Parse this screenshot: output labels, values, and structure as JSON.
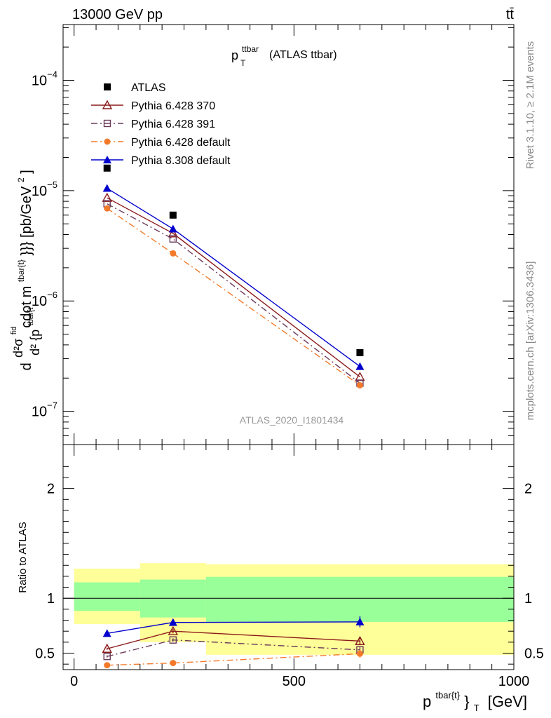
{
  "header": {
    "energy_label": "13000 GeV pp",
    "process_label": "tt̄"
  },
  "side_labels": {
    "rivet": "Rivet 3.1.10, ≥ 2.1M events",
    "source": "mcplots.cern.ch [arXiv:1306.3436]"
  },
  "chart_data": [
    {
      "type": "line",
      "title": "p_T^{ttbar} (ATLAS ttbar)",
      "title_main": "p",
      "title_sup": "ttbar",
      "title_sub": "T",
      "title_suffix": "(ATLAS ttbar)",
      "watermark": "ATLAS_2020_I1801434",
      "ylabel": "d d²σ^{fid} / d² {p_T^{tbar{t}}} cdot m^{tbar{t}}}} [pb/GeV²]",
      "ylabel_parts": {
        "d1": "d",
        "num": "d²σ",
        "num_sup": "fid",
        "den": "d² {p",
        "den_sup": "tbar{t",
        "den_sub": "T",
        "rest": "cdot m",
        "rest_sup": "tbar{t}",
        "tail": "}}} [pb/GeV",
        "tail_sup": "2",
        "end": "]"
      },
      "y_scale": "log",
      "ylim": [
        5e-08,
        0.00032
      ],
      "xlim": [
        -25,
        1000
      ],
      "y_ticks": [
        {
          "value": 1e-07,
          "base": "10",
          "exp": "−7"
        },
        {
          "value": 1e-06,
          "base": "10",
          "exp": "−6"
        },
        {
          "value": 1e-05,
          "base": "10",
          "exp": "−5"
        },
        {
          "value": 0.0001,
          "base": "10",
          "exp": "−4"
        }
      ],
      "legend_position": "top-left",
      "series": [
        {
          "name": "ATLAS",
          "color": "#000000",
          "marker": "square-filled",
          "line": "none",
          "x": [
            75,
            225,
            650
          ],
          "y": [
            1.6e-05,
            6e-06,
            3.4e-07
          ]
        },
        {
          "name": "Pythia 6.428 370",
          "color": "#8b1a1a",
          "marker": "triangle-open",
          "line": "solid",
          "x": [
            75,
            225,
            650
          ],
          "y": [
            8.6e-06,
            4.1e-06,
            2.05e-07
          ]
        },
        {
          "name": "Pythia 6.428 391",
          "color": "#6b3a5a",
          "marker": "square-open",
          "line": "dashdot",
          "x": [
            75,
            225,
            650
          ],
          "y": [
            7.6e-06,
            3.65e-06,
            1.8e-07
          ]
        },
        {
          "name": "Pythia 6.428 default",
          "color": "#f37a2a",
          "marker": "circle-filled",
          "line": "dashdot",
          "x": [
            75,
            225,
            650
          ],
          "y": [
            6.9e-06,
            2.7e-06,
            1.72e-07
          ]
        },
        {
          "name": "Pythia 8.308 default",
          "color": "#0000cc",
          "marker": "triangle-filled",
          "line": "solid",
          "x": [
            75,
            225,
            650
          ],
          "y": [
            1.05e-05,
            4.5e-06,
            2.55e-07
          ]
        }
      ]
    },
    {
      "type": "line",
      "ylabel": "Ratio to ATLAS",
      "xlabel": "p_T^{tbar{t}} [GeV]",
      "xlabel_parts": {
        "main": "p",
        "sup": "tbar{t}",
        "mid": "}",
        "sub": "T",
        "unit": "[GeV]"
      },
      "xlim": [
        -25,
        1000
      ],
      "ylim": [
        0.35,
        2.4
      ],
      "x_ticks": [
        0,
        500,
        1000
      ],
      "x_tick_labels": [
        "0",
        "500",
        "1000"
      ],
      "y_ticks": [
        0.5,
        1,
        2
      ],
      "y_tick_labels": [
        "0.5",
        "1",
        "2"
      ],
      "reference_line": 1,
      "uncertainty_bands": [
        {
          "x0": 0,
          "x1": 150,
          "stat": [
            0.885,
            1.145
          ],
          "total": [
            0.765,
            1.27
          ]
        },
        {
          "x0": 150,
          "x1": 300,
          "stat": [
            0.825,
            1.17
          ],
          "total": [
            0.6,
            1.32
          ]
        },
        {
          "x0": 300,
          "x1": 1000,
          "stat": [
            0.785,
            1.195
          ],
          "total": [
            0.485,
            1.31
          ]
        }
      ],
      "band_colors": {
        "stat": "#99ff99",
        "total": "#ffff99"
      },
      "series": [
        {
          "name": "Pythia 6.428 370",
          "color": "#8b1a1a",
          "marker": "triangle-open",
          "line": "solid",
          "x": [
            75,
            225,
            650
          ],
          "y": [
            0.54,
            0.7,
            0.61
          ],
          "err": [
            0.01,
            0.02,
            0.03
          ]
        },
        {
          "name": "Pythia 6.428 391",
          "color": "#6b3a5a",
          "marker": "square-open",
          "line": "dashdot",
          "x": [
            75,
            225,
            650
          ],
          "y": [
            0.47,
            0.62,
            0.53
          ],
          "err": [
            0.01,
            0.015,
            0.025
          ]
        },
        {
          "name": "Pythia 6.428 default",
          "color": "#f37a2a",
          "marker": "circle-filled",
          "line": "dashdot",
          "x": [
            75,
            225,
            650
          ],
          "y": [
            0.39,
            0.41,
            0.495
          ],
          "err": [
            0.015,
            0.02,
            0.035
          ]
        },
        {
          "name": "Pythia 8.308 default",
          "color": "#0000cc",
          "marker": "triangle-filled",
          "line": "solid",
          "x": [
            75,
            225,
            650
          ],
          "y": [
            0.68,
            0.78,
            0.785
          ],
          "err": [
            0.015,
            0.03,
            0.05
          ]
        }
      ]
    }
  ]
}
